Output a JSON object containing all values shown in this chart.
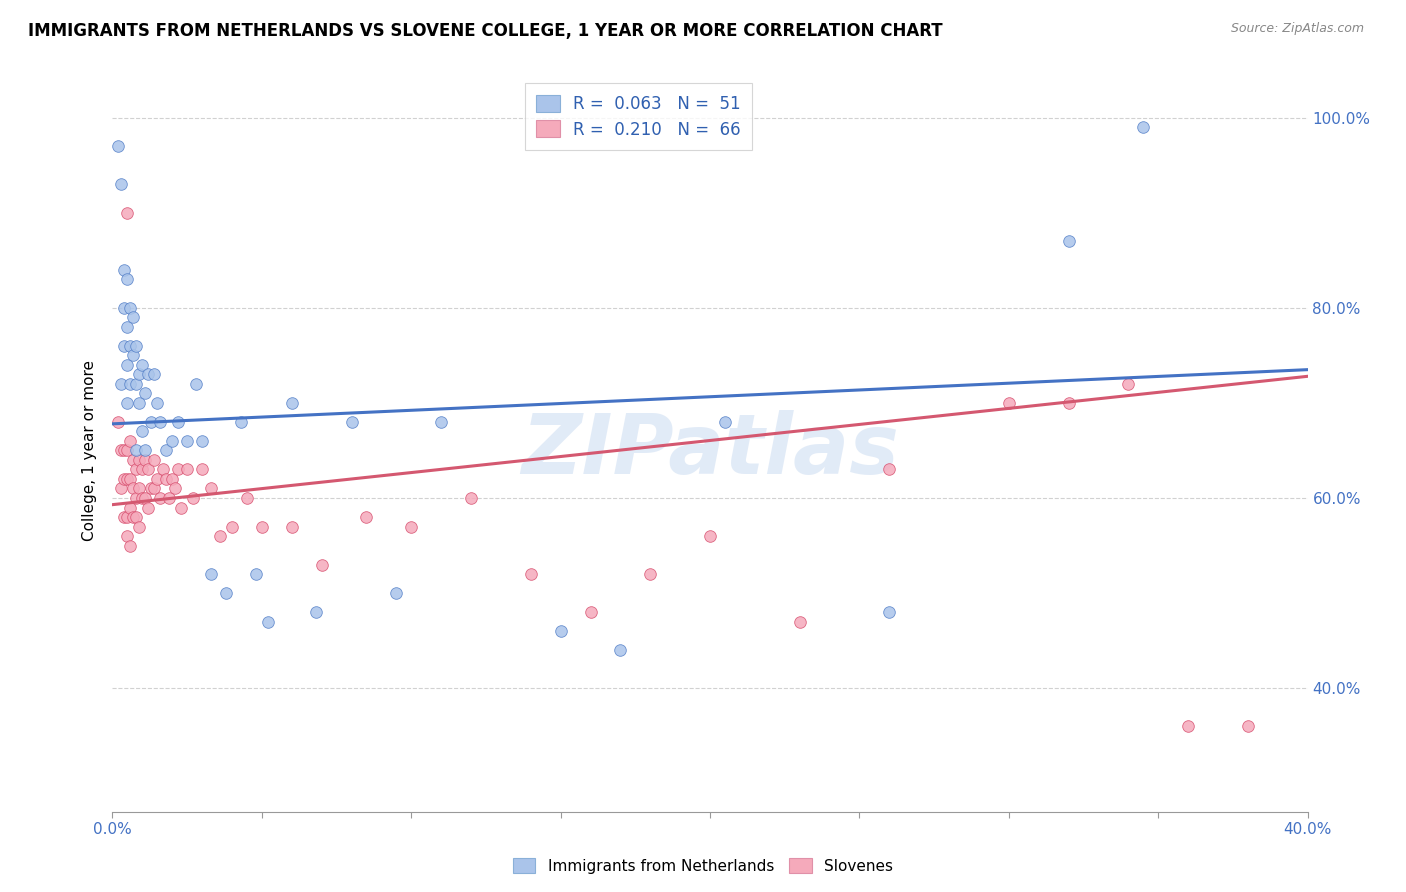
{
  "title": "IMMIGRANTS FROM NETHERLANDS VS SLOVENE COLLEGE, 1 YEAR OR MORE CORRELATION CHART",
  "source": "Source: ZipAtlas.com",
  "ylabel": "College, 1 year or more",
  "xlim": [
    0.0,
    0.4
  ],
  "ylim": [
    0.27,
    1.03
  ],
  "xticks": [
    0.0,
    0.05,
    0.1,
    0.15,
    0.2,
    0.25,
    0.3,
    0.35,
    0.4
  ],
  "xticklabels": [
    "0.0%",
    "",
    "",
    "",
    "",
    "",
    "",
    "",
    "40.0%"
  ],
  "yticks": [
    0.4,
    0.6,
    0.8,
    1.0
  ],
  "yticklabels_right": [
    "40.0%",
    "60.0%",
    "80.0%",
    "100.0%"
  ],
  "legend_labels": [
    "Immigrants from Netherlands",
    "Slovenes"
  ],
  "blue_color": "#aac4ea",
  "pink_color": "#f5aabb",
  "blue_edge_color": "#5580c8",
  "pink_edge_color": "#d85070",
  "blue_line_color": "#4472c4",
  "pink_line_color": "#d45870",
  "watermark": "ZIPatlas",
  "R_blue": 0.063,
  "N_blue": 51,
  "R_pink": 0.21,
  "N_pink": 66,
  "blue_line_y0": 0.678,
  "blue_line_y1": 0.735,
  "pink_line_y0": 0.593,
  "pink_line_y1": 0.728,
  "title_fontsize": 12,
  "source_fontsize": 9,
  "axis_fontsize": 11,
  "legend_fontsize": 12,
  "blue_x": [
    0.002,
    0.003,
    0.003,
    0.004,
    0.004,
    0.004,
    0.005,
    0.005,
    0.005,
    0.005,
    0.006,
    0.006,
    0.006,
    0.007,
    0.007,
    0.008,
    0.008,
    0.008,
    0.009,
    0.009,
    0.01,
    0.01,
    0.011,
    0.011,
    0.012,
    0.013,
    0.014,
    0.015,
    0.016,
    0.018,
    0.02,
    0.022,
    0.025,
    0.028,
    0.03,
    0.033,
    0.038,
    0.043,
    0.048,
    0.052,
    0.06,
    0.068,
    0.08,
    0.095,
    0.11,
    0.15,
    0.17,
    0.205,
    0.26,
    0.32,
    0.345
  ],
  "blue_y": [
    0.97,
    0.93,
    0.72,
    0.84,
    0.8,
    0.76,
    0.83,
    0.78,
    0.74,
    0.7,
    0.8,
    0.76,
    0.72,
    0.79,
    0.75,
    0.76,
    0.72,
    0.65,
    0.73,
    0.7,
    0.74,
    0.67,
    0.71,
    0.65,
    0.73,
    0.68,
    0.73,
    0.7,
    0.68,
    0.65,
    0.66,
    0.68,
    0.66,
    0.72,
    0.66,
    0.52,
    0.5,
    0.68,
    0.52,
    0.47,
    0.7,
    0.48,
    0.68,
    0.5,
    0.68,
    0.46,
    0.44,
    0.68,
    0.48,
    0.87,
    0.99
  ],
  "pink_x": [
    0.002,
    0.003,
    0.003,
    0.004,
    0.004,
    0.004,
    0.005,
    0.005,
    0.005,
    0.005,
    0.006,
    0.006,
    0.006,
    0.006,
    0.007,
    0.007,
    0.007,
    0.008,
    0.008,
    0.008,
    0.009,
    0.009,
    0.009,
    0.01,
    0.01,
    0.011,
    0.011,
    0.012,
    0.012,
    0.013,
    0.014,
    0.014,
    0.015,
    0.016,
    0.017,
    0.018,
    0.019,
    0.02,
    0.021,
    0.022,
    0.023,
    0.025,
    0.027,
    0.03,
    0.033,
    0.036,
    0.04,
    0.045,
    0.05,
    0.06,
    0.07,
    0.085,
    0.1,
    0.12,
    0.14,
    0.16,
    0.18,
    0.2,
    0.23,
    0.26,
    0.3,
    0.32,
    0.34,
    0.36,
    0.38,
    0.005
  ],
  "pink_y": [
    0.68,
    0.65,
    0.61,
    0.65,
    0.62,
    0.58,
    0.65,
    0.62,
    0.58,
    0.56,
    0.66,
    0.62,
    0.59,
    0.55,
    0.64,
    0.61,
    0.58,
    0.63,
    0.6,
    0.58,
    0.64,
    0.61,
    0.57,
    0.63,
    0.6,
    0.64,
    0.6,
    0.63,
    0.59,
    0.61,
    0.64,
    0.61,
    0.62,
    0.6,
    0.63,
    0.62,
    0.6,
    0.62,
    0.61,
    0.63,
    0.59,
    0.63,
    0.6,
    0.63,
    0.61,
    0.56,
    0.57,
    0.6,
    0.57,
    0.57,
    0.53,
    0.58,
    0.57,
    0.6,
    0.52,
    0.48,
    0.52,
    0.56,
    0.47,
    0.63,
    0.7,
    0.7,
    0.72,
    0.36,
    0.36,
    0.9
  ]
}
